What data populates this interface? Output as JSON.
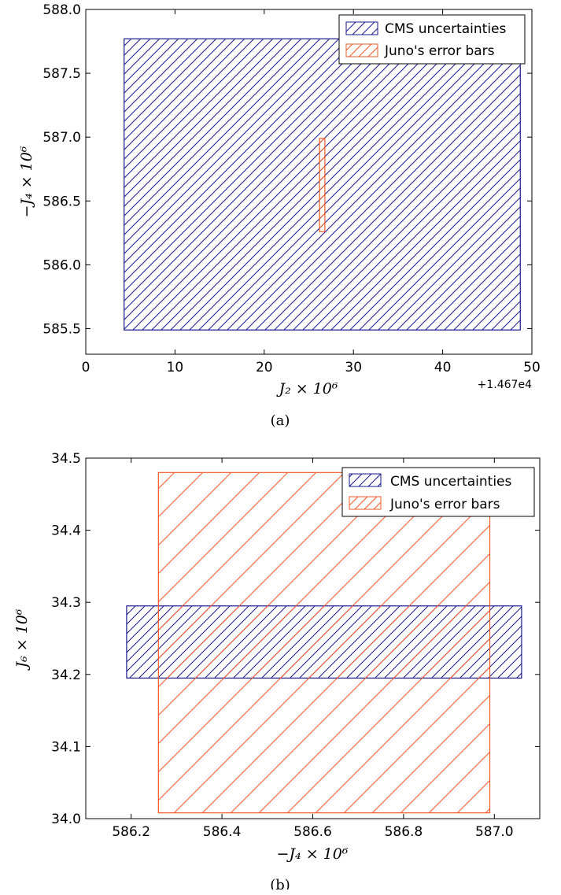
{
  "chart_data": [
    {
      "type": "rect-regions",
      "caption": "(a)",
      "xlabel": "J₂ × 10⁶",
      "ylabel": "−J₄ × 10⁶",
      "x_offset_label": "+1.467e4",
      "xlim": [
        0,
        50
      ],
      "ylim": [
        585.3,
        588.0
      ],
      "xticks": [
        0,
        10,
        20,
        30,
        40,
        50
      ],
      "xtick_labels": [
        "0",
        "10",
        "20",
        "30",
        "40",
        "50"
      ],
      "yticks": [
        585.5,
        586.0,
        586.5,
        587.0,
        587.5,
        588.0
      ],
      "ytick_labels": [
        "585.5",
        "586.0",
        "586.5",
        "587.0",
        "587.5",
        "588.0"
      ],
      "legend_position": "top-right",
      "legend": [
        "CMS uncertainties",
        "Juno's error bars"
      ],
      "series": [
        {
          "name": "CMS uncertainties",
          "color": "#1a1a8c",
          "x": [
            4.3,
            48.7
          ],
          "y": [
            585.49,
            587.77
          ]
        },
        {
          "name": "Juno's error bars",
          "color": "#f05a28",
          "x": [
            26.2,
            26.8
          ],
          "y": [
            586.26,
            586.99
          ]
        }
      ]
    },
    {
      "type": "rect-regions",
      "caption": "(b)",
      "xlabel": "−J₄ × 10⁶",
      "ylabel": "J₆ × 10⁶",
      "xlim": [
        586.1,
        587.1
      ],
      "ylim": [
        34.0,
        34.5
      ],
      "xticks": [
        586.2,
        586.4,
        586.6,
        586.8,
        587.0
      ],
      "xtick_labels": [
        "586.2",
        "586.4",
        "586.6",
        "586.8",
        "587.0"
      ],
      "yticks": [
        34.0,
        34.1,
        34.2,
        34.3,
        34.4,
        34.5
      ],
      "ytick_labels": [
        "34.0",
        "34.1",
        "34.2",
        "34.3",
        "34.4",
        "34.5"
      ],
      "legend_position": "top-right",
      "legend": [
        "CMS uncertainties",
        "Juno's error bars"
      ],
      "series": [
        {
          "name": "CMS uncertainties",
          "color": "#1a1a8c",
          "x": [
            586.19,
            587.06
          ],
          "y": [
            34.195,
            34.295
          ]
        },
        {
          "name": "Juno's error bars",
          "color": "#f05a28",
          "x": [
            586.26,
            586.99
          ],
          "y": [
            34.008,
            34.48
          ]
        }
      ]
    }
  ]
}
